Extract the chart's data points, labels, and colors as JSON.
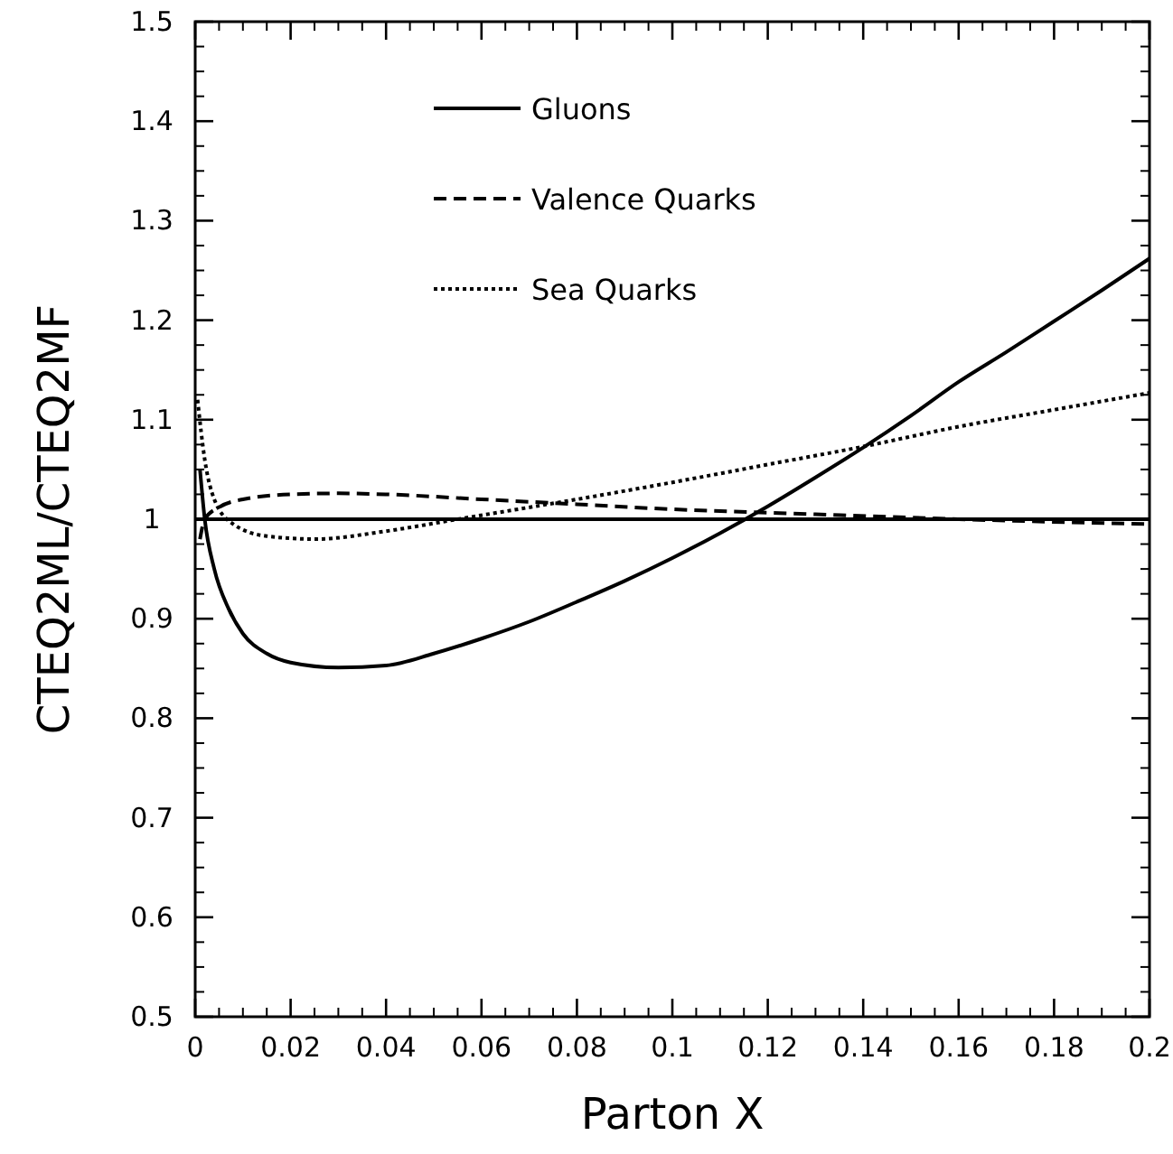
{
  "chart_data": {
    "type": "line",
    "xlabel": "Parton X",
    "ylabel": "CTEQ2ML/CTEQ2MF",
    "xlim": [
      0,
      0.2
    ],
    "ylim": [
      0.5,
      1.5
    ],
    "xticks": [
      0,
      0.02,
      0.04,
      0.06,
      0.08,
      0.1,
      0.12,
      0.14,
      0.16,
      0.18,
      0.2
    ],
    "yticks": [
      0.5,
      0.6,
      0.7,
      0.8,
      0.9,
      1,
      1.1,
      1.2,
      1.3,
      1.4,
      1.5
    ],
    "grid": false,
    "legend": "top",
    "ref_lines": [
      {
        "axis": "y",
        "value": 1,
        "color": "#000000",
        "line_style": "solid"
      }
    ],
    "series": [
      {
        "name": "Gluons",
        "color": "#000000",
        "line_style": "solid",
        "x": [
          0.001,
          0.002,
          0.004,
          0.007,
          0.01,
          0.015,
          0.02,
          0.03,
          0.04,
          0.05,
          0.06,
          0.07,
          0.08,
          0.09,
          0.1,
          0.11,
          0.12,
          0.13,
          0.14,
          0.15,
          0.16,
          0.17,
          0.18,
          0.19,
          0.2
        ],
        "values": [
          1.05,
          1.0,
          0.95,
          0.91,
          0.885,
          0.865,
          0.856,
          0.851,
          0.853,
          0.865,
          0.88,
          0.897,
          0.917,
          0.938,
          0.961,
          0.986,
          1.013,
          1.042,
          1.072,
          1.104,
          1.138,
          1.168,
          1.199,
          1.23,
          1.262
        ]
      },
      {
        "name": "Valence Quarks",
        "color": "#000000",
        "line_style": "dashed",
        "x": [
          0.001,
          0.002,
          0.005,
          0.01,
          0.02,
          0.03,
          0.04,
          0.06,
          0.08,
          0.1,
          0.13,
          0.16,
          0.2
        ],
        "values": [
          0.98,
          1.0,
          1.012,
          1.02,
          1.025,
          1.026,
          1.025,
          1.02,
          1.015,
          1.01,
          1.005,
          1.0,
          0.995
        ]
      },
      {
        "name": "Sea Quarks",
        "color": "#000000",
        "line_style": "dotted",
        "x": [
          0.0005,
          0.002,
          0.004,
          0.008,
          0.015,
          0.025,
          0.04,
          0.055,
          0.08,
          0.1,
          0.12,
          0.14,
          0.16,
          0.18,
          0.2
        ],
        "values": [
          1.12,
          1.06,
          1.02,
          0.995,
          0.983,
          0.98,
          0.988,
          1.0,
          1.02,
          1.037,
          1.055,
          1.073,
          1.093,
          1.11,
          1.127
        ]
      }
    ]
  }
}
